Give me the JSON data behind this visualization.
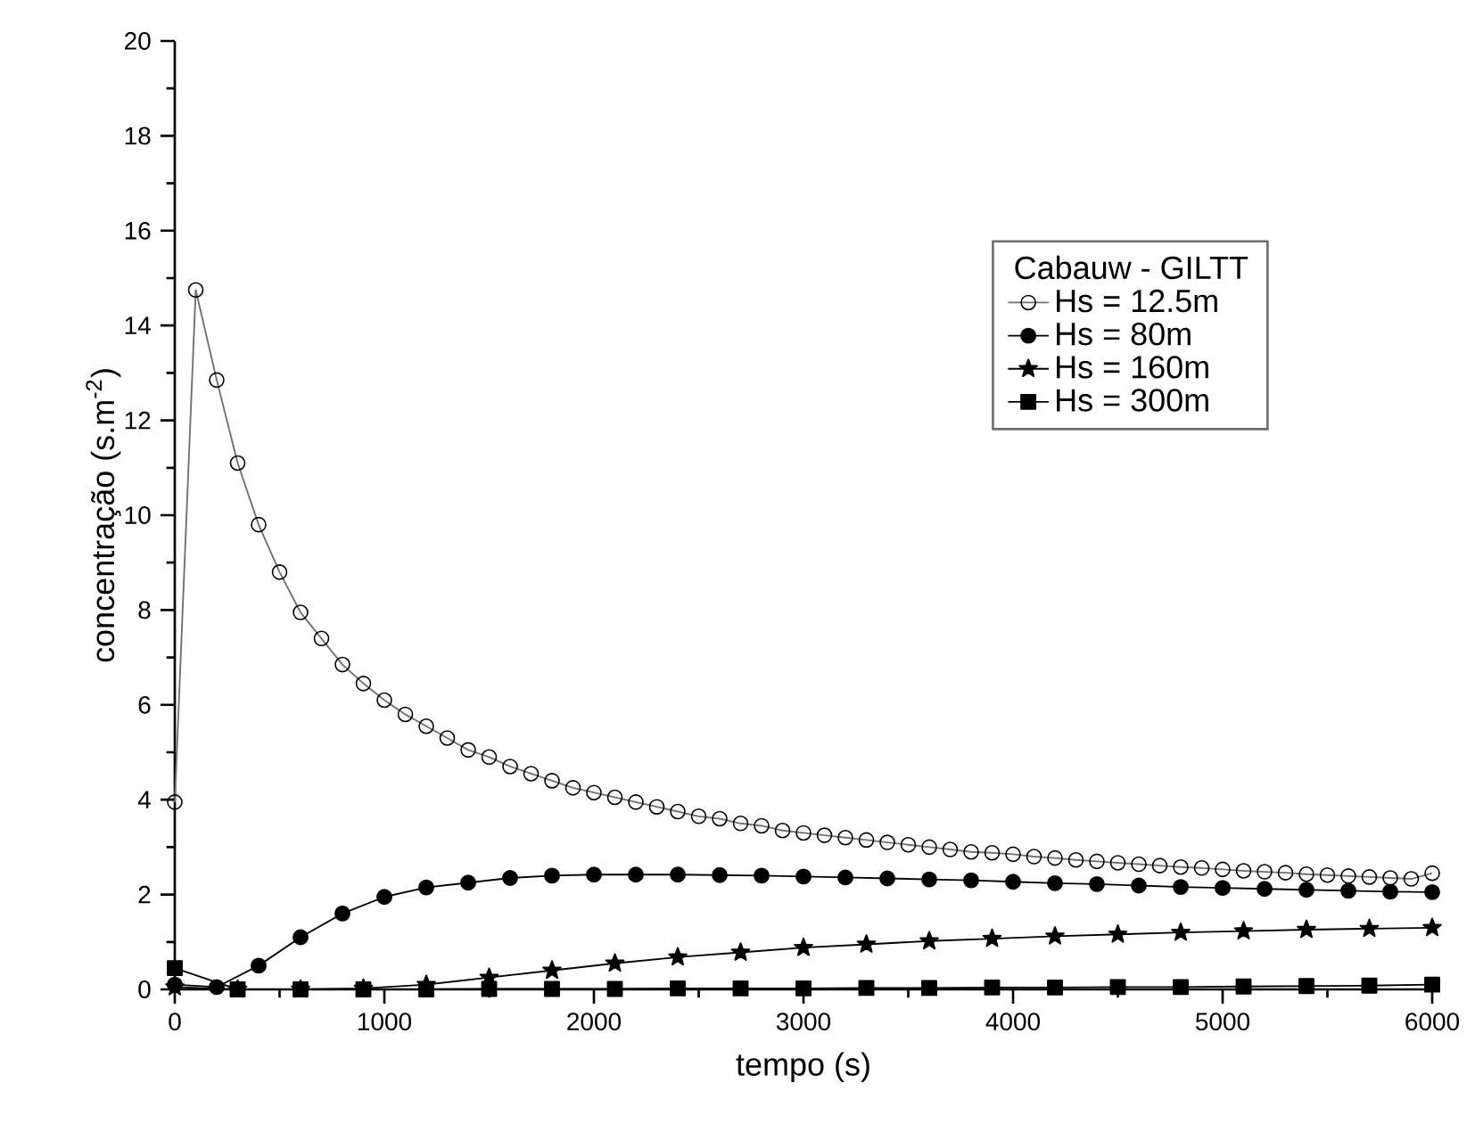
{
  "chart_data": {
    "type": "line",
    "xlabel": "tempo  (s)",
    "ylabel": "concentração  (s.m$^{-2}$)",
    "legend_title": "Cabauw - GILTT",
    "legend": "right",
    "grid": false,
    "line_style": "solid",
    "xlim": [
      0,
      6000
    ],
    "ylim": [
      0,
      20
    ],
    "xticks": [
      0,
      1000,
      2000,
      3000,
      4000,
      5000,
      6000
    ],
    "yticks": [
      0,
      2,
      4,
      6,
      8,
      10,
      12,
      14,
      16,
      18,
      20
    ],
    "series": [
      {
        "name": "Hs = 12.5m",
        "color": "#707070",
        "marker": "open circle",
        "x": [
          0,
          100,
          200,
          300,
          400,
          500,
          600,
          700,
          800,
          900,
          1000,
          1100,
          1200,
          1300,
          1400,
          1500,
          1600,
          1700,
          1800,
          1900,
          2000,
          2100,
          2200,
          2300,
          2400,
          2500,
          2600,
          2700,
          2800,
          2900,
          3000,
          3100,
          3200,
          3300,
          3400,
          3500,
          3600,
          3700,
          3800,
          3900,
          4000,
          4100,
          4200,
          4300,
          4400,
          4500,
          4600,
          4700,
          4800,
          4900,
          5000,
          5100,
          5200,
          5300,
          5400,
          5500,
          5600,
          5700,
          5800,
          5900,
          6000
        ],
        "values": [
          3.95,
          14.75,
          12.85,
          11.1,
          9.8,
          8.8,
          7.95,
          7.4,
          6.85,
          6.45,
          6.1,
          5.8,
          5.55,
          5.3,
          5.05,
          4.9,
          4.7,
          4.55,
          4.4,
          4.25,
          4.15,
          4.05,
          3.95,
          3.85,
          3.75,
          3.65,
          3.6,
          3.5,
          3.45,
          3.35,
          3.3,
          3.25,
          3.2,
          3.15,
          3.1,
          3.05,
          3.0,
          2.95,
          2.9,
          2.88,
          2.85,
          2.8,
          2.77,
          2.73,
          2.7,
          2.67,
          2.64,
          2.61,
          2.58,
          2.56,
          2.53,
          2.5,
          2.48,
          2.46,
          2.43,
          2.41,
          2.39,
          2.37,
          2.35,
          2.33,
          2.45
        ]
      },
      {
        "name": "Hs = 80m",
        "color": "#000000",
        "marker": "circle",
        "x": [
          0,
          200,
          400,
          600,
          800,
          1000,
          1200,
          1400,
          1600,
          1800,
          2000,
          2200,
          2400,
          2600,
          2800,
          3000,
          3200,
          3400,
          3600,
          3800,
          4000,
          4200,
          4400,
          4600,
          4800,
          5000,
          5200,
          5400,
          5600,
          5800,
          6000
        ],
        "values": [
          0.1,
          0.05,
          0.5,
          1.1,
          1.6,
          1.95,
          2.15,
          2.25,
          2.35,
          2.4,
          2.42,
          2.42,
          2.42,
          2.41,
          2.4,
          2.38,
          2.36,
          2.34,
          2.32,
          2.3,
          2.27,
          2.24,
          2.22,
          2.19,
          2.16,
          2.14,
          2.12,
          2.1,
          2.08,
          2.06,
          2.05
        ]
      },
      {
        "name": "Hs = 160m",
        "color": "#000000",
        "marker": "star",
        "x": [
          0,
          300,
          600,
          900,
          1200,
          1500,
          1800,
          2100,
          2400,
          2700,
          3000,
          3300,
          3600,
          3900,
          4200,
          4500,
          4800,
          5100,
          5400,
          5700,
          6000
        ],
        "values": [
          0.05,
          0.0,
          0.0,
          0.02,
          0.1,
          0.25,
          0.4,
          0.55,
          0.68,
          0.78,
          0.88,
          0.95,
          1.02,
          1.07,
          1.12,
          1.16,
          1.2,
          1.23,
          1.26,
          1.28,
          1.3
        ]
      },
      {
        "name": "Hs = 300m",
        "color": "#000000",
        "marker": "square",
        "x": [
          0,
          300,
          600,
          900,
          1200,
          1500,
          1800,
          2100,
          2400,
          2700,
          3000,
          3300,
          3600,
          3900,
          4200,
          4500,
          4800,
          5100,
          5400,
          5700,
          6000
        ],
        "values": [
          0.45,
          0.0,
          0.0,
          0.0,
          0.0,
          0.01,
          0.01,
          0.01,
          0.02,
          0.02,
          0.02,
          0.03,
          0.03,
          0.04,
          0.04,
          0.05,
          0.05,
          0.06,
          0.07,
          0.08,
          0.1
        ]
      }
    ]
  }
}
